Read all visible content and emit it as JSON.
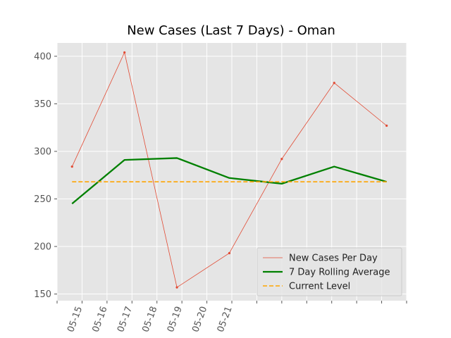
{
  "chart_data": {
    "type": "line",
    "title": "New Cases (Last 7 Days) - Oman",
    "xlabel": "",
    "ylabel": "",
    "x_tick_labels": [
      "05-15",
      "05-16",
      "05-17",
      "05-18",
      "05-19",
      "05-20",
      "05-21"
    ],
    "xlim": [
      0,
      14
    ],
    "ylim": [
      143,
      414
    ],
    "y_ticks": [
      150,
      200,
      250,
      300,
      350,
      400
    ],
    "grid": true,
    "legend_position": "lower-right",
    "series": [
      {
        "name": "New Cases Per Day",
        "color": "#E24A33",
        "style": "thin-line-markers",
        "points": [
          {
            "x": 0.6,
            "y": 284
          },
          {
            "x": 2.7,
            "y": 404
          },
          {
            "x": 4.8,
            "y": 157
          },
          {
            "x": 6.9,
            "y": 193
          },
          {
            "x": 9.0,
            "y": 292
          },
          {
            "x": 11.1,
            "y": 372
          },
          {
            "x": 13.2,
            "y": 327
          }
        ]
      },
      {
        "name": "7 Day Rolling Average",
        "color": "#008000",
        "style": "thick-line",
        "points": [
          {
            "x": 0.6,
            "y": 245
          },
          {
            "x": 2.7,
            "y": 291
          },
          {
            "x": 4.8,
            "y": 293
          },
          {
            "x": 6.9,
            "y": 272
          },
          {
            "x": 9.0,
            "y": 266
          },
          {
            "x": 11.1,
            "y": 284
          },
          {
            "x": 13.2,
            "y": 268
          }
        ]
      },
      {
        "name": "Current Level",
        "color": "#FFA500",
        "style": "dashed",
        "points": [
          {
            "x": 0.6,
            "y": 268
          },
          {
            "x": 13.2,
            "y": 268
          }
        ]
      }
    ]
  }
}
